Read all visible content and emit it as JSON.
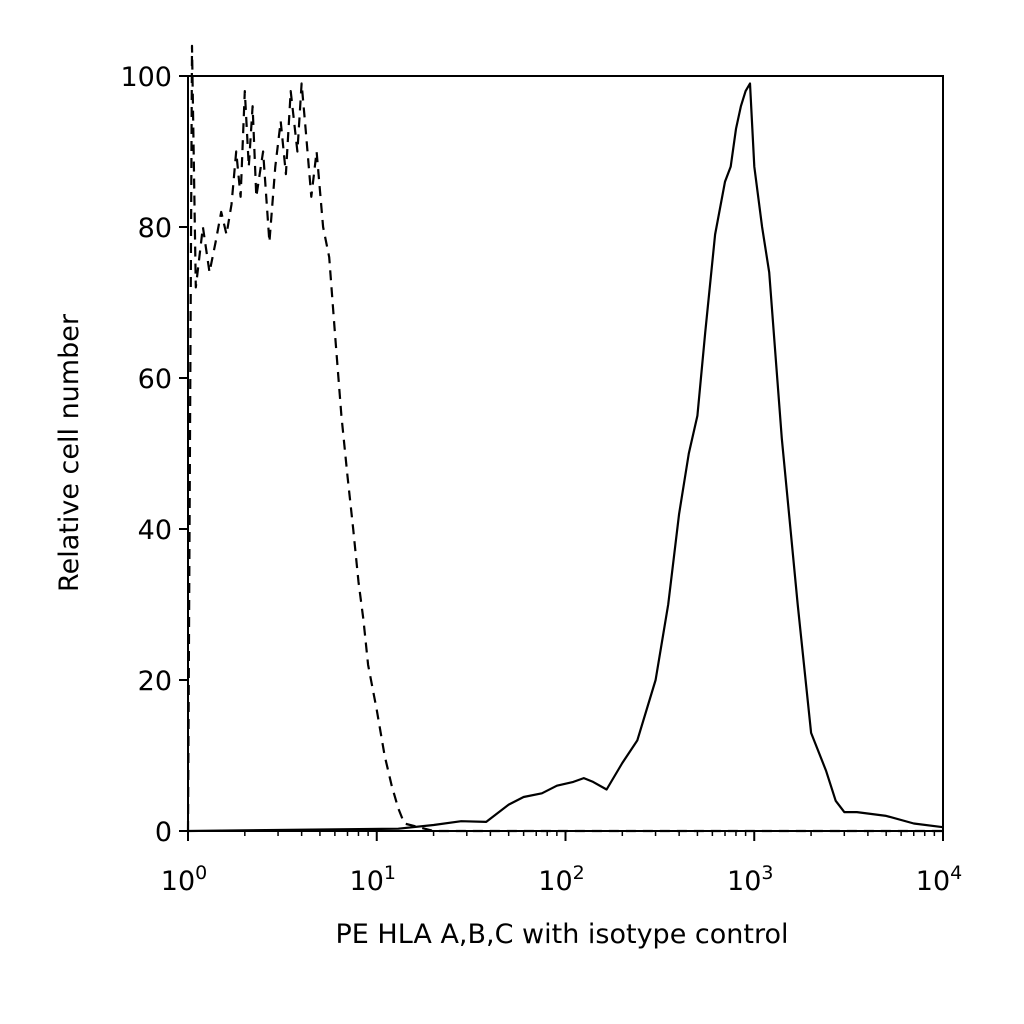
{
  "chart_data": {
    "type": "line",
    "title": "",
    "xlabel": "PE HLA A,B,C with isotype control",
    "ylabel": "Relative cell number",
    "x_scale": "log",
    "xlim": [
      1,
      10000
    ],
    "ylim": [
      0,
      100
    ],
    "grid": false,
    "legend": "none",
    "x_ticks": [
      {
        "base": "10",
        "exp": "0",
        "value": 1
      },
      {
        "base": "10",
        "exp": "1",
        "value": 10
      },
      {
        "base": "10",
        "exp": "2",
        "value": 100
      },
      {
        "base": "10",
        "exp": "3",
        "value": 1000
      },
      {
        "base": "10",
        "exp": "4",
        "value": 10000
      }
    ],
    "y_ticks": [
      {
        "label": "0",
        "value": 0
      },
      {
        "label": "20",
        "value": 20
      },
      {
        "label": "40",
        "value": 40
      },
      {
        "label": "60",
        "value": 60
      },
      {
        "label": "80",
        "value": 80
      },
      {
        "label": "100",
        "value": 100
      }
    ],
    "series": [
      {
        "style": "solid",
        "color": "#000000",
        "x": [
          1.0,
          13,
          20,
          28,
          38,
          50,
          60,
          75,
          90,
          110,
          125,
          140,
          165,
          200,
          240,
          300,
          350,
          400,
          450,
          500,
          550,
          620,
          700,
          750,
          800,
          850,
          900,
          950,
          1000,
          1100,
          1200,
          1400,
          1700,
          2000,
          2400,
          2700,
          3000,
          3500,
          5000,
          7000,
          10000
        ],
        "y": [
          0,
          0.3,
          0.8,
          1.3,
          1.2,
          3.5,
          4.5,
          5,
          6,
          6.5,
          7,
          6.5,
          5.5,
          9,
          12,
          20,
          30,
          42,
          50,
          55,
          66,
          79,
          86,
          88,
          93,
          96,
          98,
          99,
          88,
          80,
          74,
          52,
          30,
          13,
          8,
          4,
          2.5,
          2.5,
          2,
          1,
          0.5
        ]
      },
      {
        "style": "dashed",
        "color": "#000000",
        "x": [
          1.0,
          1.05,
          1.1,
          1.2,
          1.3,
          1.4,
          1.5,
          1.6,
          1.7,
          1.8,
          1.9,
          2.0,
          2.1,
          2.2,
          2.3,
          2.5,
          2.7,
          2.9,
          3.1,
          3.3,
          3.5,
          3.8,
          4.0,
          4.2,
          4.5,
          4.8,
          5.2,
          5.6,
          6.0,
          6.5,
          7.0,
          7.5,
          8.0,
          8.5,
          9.0,
          10,
          11,
          12,
          13,
          14,
          20,
          50,
          100,
          1000,
          10000
        ],
        "y": [
          0,
          104,
          72,
          80,
          74,
          78,
          82,
          79,
          83,
          90,
          84,
          98,
          88,
          96,
          84,
          90,
          78,
          88,
          94,
          87,
          98,
          90,
          99,
          93,
          84,
          90,
          80,
          76,
          66,
          55,
          47,
          40,
          33,
          28,
          22,
          16,
          10,
          6,
          3,
          1,
          0,
          0,
          0,
          0,
          0
        ]
      }
    ]
  }
}
